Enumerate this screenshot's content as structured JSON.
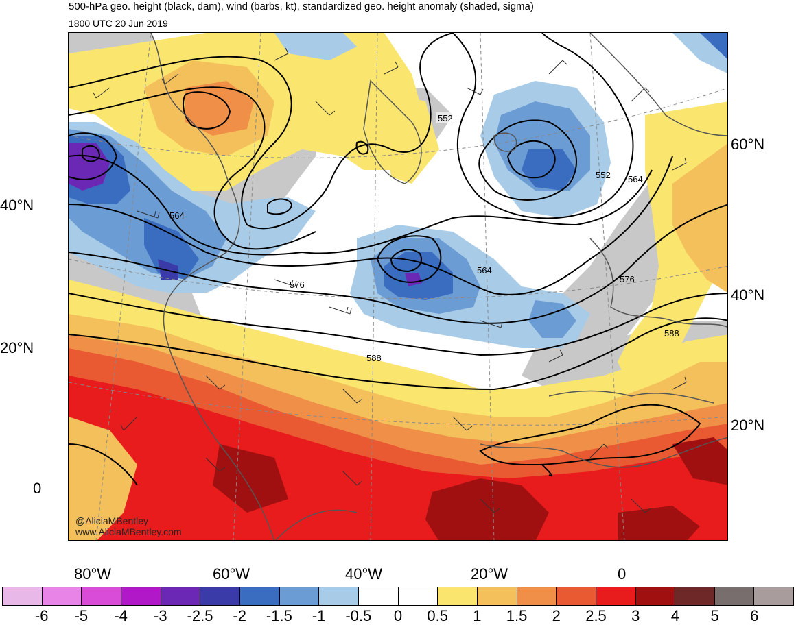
{
  "header": {
    "title": "500-hPa geo. height (black, dam), wind (barbs, kt), standardized geo. height anomaly (shaded, sigma)",
    "valid_time": "1800 UTC 20 Jun 2019"
  },
  "map": {
    "lat_labels_left": [
      "40°N",
      "20°N",
      "0"
    ],
    "lat_labels_right": [
      "60°N",
      "40°N",
      "20°N"
    ],
    "lon_labels": [
      "80°W",
      "60°W",
      "40°W",
      "20°W",
      "0"
    ],
    "contour_labels": [
      "552",
      "564",
      "576",
      "588",
      "552",
      "564",
      "564",
      "576",
      "588"
    ],
    "credit_handle": "@AliciaMBentley",
    "credit_url": "www.AliciaMBentley.com"
  },
  "colorbar": {
    "labels": [
      "-6",
      "-5",
      "-4",
      "-3",
      "-2.5",
      "-2",
      "-1.5",
      "-1",
      "-0.5",
      "0",
      "0.5",
      "1",
      "1.5",
      "2",
      "2.5",
      "3",
      "4",
      "5",
      "6"
    ],
    "colors": [
      "#e8b8e8",
      "#e884e8",
      "#d84cd8",
      "#b018c8",
      "#6a28b4",
      "#3a3aa8",
      "#3a6cc0",
      "#6c9cd4",
      "#a8cce8",
      "#ffffff",
      "#ffffff",
      "#fae66e",
      "#f4c05c",
      "#f09048",
      "#ea5a32",
      "#e81c1c",
      "#a01010",
      "#6e2828",
      "#786e6e",
      "#a89c9c"
    ]
  },
  "palette": {
    "land": "#c8c8c8",
    "contour": "#000000",
    "coast": "#555555"
  }
}
